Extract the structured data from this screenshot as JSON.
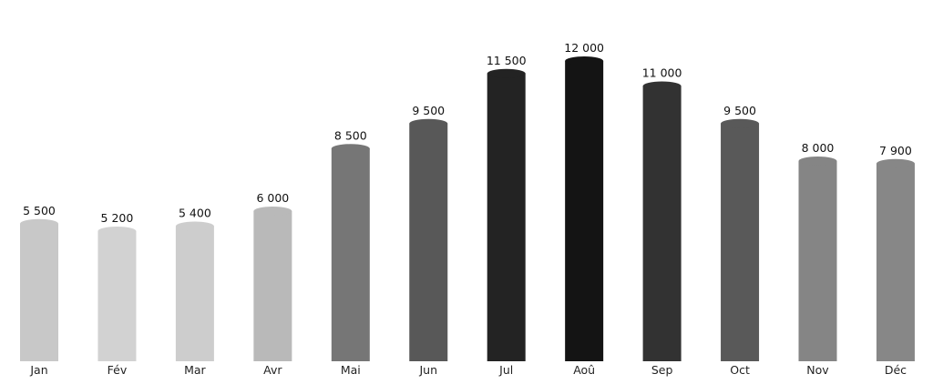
{
  "chart_data": {
    "type": "bar",
    "categories": [
      "Jan",
      "Fév",
      "Mar",
      "Avr",
      "Mai",
      "Jun",
      "Jul",
      "Aoû",
      "Sep",
      "Oct",
      "Nov",
      "Déc"
    ],
    "values": [
      5500,
      5200,
      5400,
      6000,
      8500,
      9500,
      11500,
      12000,
      11000,
      9500,
      8000,
      7900
    ],
    "value_labels": [
      "5 500",
      "5 200",
      "5 400",
      "6 000",
      "8 500",
      "9 500",
      "11 500",
      "12 000",
      "11 000",
      "9 500",
      "8 000",
      "7 900"
    ],
    "colors": [
      "#c8c8c8",
      "#d2d2d2",
      "#cdcdcd",
      "#b9b9b9",
      "#767676",
      "#585858",
      "#232323",
      "#141414",
      "#323232",
      "#595959",
      "#858585",
      "#878787"
    ],
    "title": "",
    "xlabel": "",
    "ylabel": "",
    "ylim": [
      0,
      12000
    ],
    "grid": false,
    "legend": "none"
  }
}
